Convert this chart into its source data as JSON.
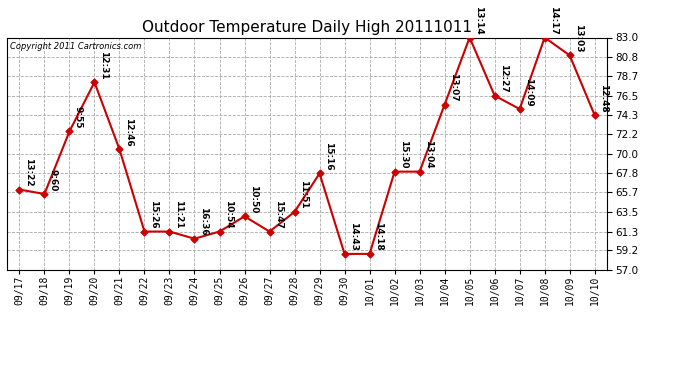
{
  "title": "Outdoor Temperature Daily High 20111011",
  "copyright": "Copyright 2011 Cartronics.com",
  "x_labels": [
    "09/17",
    "09/18",
    "09/19",
    "09/20",
    "09/21",
    "09/22",
    "09/23",
    "09/24",
    "09/25",
    "09/26",
    "09/27",
    "09/28",
    "09/29",
    "09/30",
    "10/01",
    "10/02",
    "10/03",
    "10/04",
    "10/05",
    "10/06",
    "10/07",
    "10/08",
    "10/09",
    "10/10"
  ],
  "y_values": [
    66.0,
    65.5,
    72.5,
    78.0,
    70.5,
    61.3,
    61.3,
    60.5,
    61.3,
    63.0,
    61.3,
    63.5,
    67.8,
    58.8,
    58.8,
    68.0,
    68.0,
    75.5,
    83.0,
    76.5,
    75.0,
    83.0,
    81.0,
    74.3
  ],
  "annotations": [
    "13:22",
    "9:60",
    "9:55",
    "12:31",
    "12:46",
    "15:26",
    "11:21",
    "16:36",
    "10:54",
    "10:50",
    "15:47",
    "11:51",
    "15:16",
    "14:43",
    "14:18",
    "15:30",
    "13:04",
    "13:07",
    "13:14",
    "12:27",
    "14:09",
    "14:17",
    "13:03",
    "12:48"
  ],
  "line_color": "#cc0000",
  "marker_color": "#cc0000",
  "background_color": "#ffffff",
  "grid_color": "#aaaaaa",
  "ylim_min": 57.0,
  "ylim_max": 83.0,
  "yticks": [
    57.0,
    59.2,
    61.3,
    63.5,
    65.7,
    67.8,
    70.0,
    72.2,
    74.3,
    76.5,
    78.7,
    80.8,
    83.0
  ],
  "annotation_fontsize": 6.5,
  "title_fontsize": 11,
  "figwidth": 6.9,
  "figheight": 3.75,
  "dpi": 100
}
